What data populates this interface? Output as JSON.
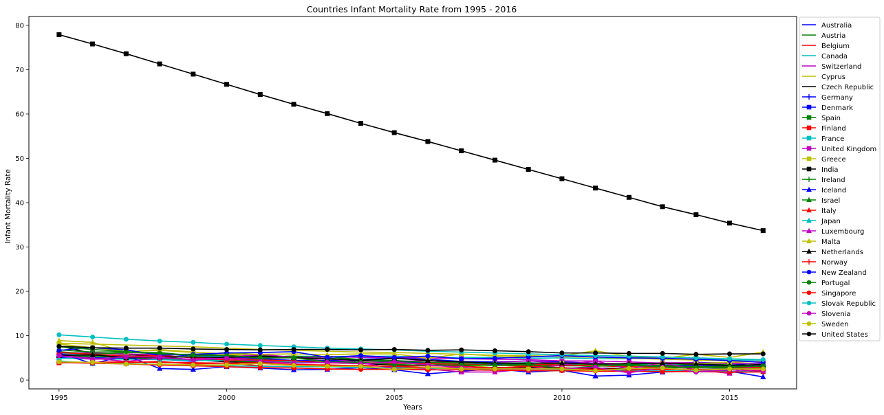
{
  "chart_data": {
    "type": "line",
    "title": "Countries Infant Mortality Rate from 1995 - 2016",
    "xlabel": "Years",
    "ylabel": "Infant Mortality Rate",
    "xlim": [
      1994.1,
      2017.0
    ],
    "ylim": [
      -2.0,
      82.0
    ],
    "xticks": [
      1995,
      2000,
      2005,
      2010,
      2015
    ],
    "yticks": [
      0,
      10,
      20,
      30,
      40,
      50,
      60,
      70,
      80
    ],
    "grid": false,
    "legend_position": "outside-right",
    "x": [
      1995,
      1996,
      1997,
      1998,
      1999,
      2000,
      2001,
      2002,
      2003,
      2004,
      2005,
      2006,
      2007,
      2008,
      2009,
      2010,
      2011,
      2012,
      2013,
      2014,
      2015,
      2016
    ],
    "series": [
      {
        "name": "Australia",
        "color": "#0000ff",
        "marker": "none",
        "values": [
          5.7,
          5.6,
          5.3,
          5.0,
          5.7,
          5.2,
          5.3,
          5.0,
          4.8,
          4.7,
          4.9,
          4.7,
          4.2,
          4.1,
          4.3,
          4.1,
          3.8,
          3.3,
          3.6,
          3.4,
          3.2,
          3.1
        ]
      },
      {
        "name": "Austria",
        "color": "#008000",
        "marker": "none",
        "values": [
          5.4,
          5.1,
          4.7,
          4.9,
          4.4,
          4.8,
          4.8,
          4.1,
          4.5,
          4.5,
          4.2,
          3.6,
          3.7,
          3.7,
          3.8,
          3.9,
          3.6,
          3.2,
          3.1,
          3.0,
          3.1,
          3.1
        ]
      },
      {
        "name": "Belgium",
        "color": "#ff0000",
        "marker": "none",
        "values": [
          6.0,
          5.6,
          5.6,
          5.6,
          5.0,
          4.8,
          4.5,
          4.4,
          4.1,
          4.3,
          3.7,
          4.0,
          4.0,
          3.7,
          3.4,
          3.6,
          3.3,
          3.8,
          3.5,
          3.4,
          3.3,
          3.2
        ]
      },
      {
        "name": "Canada",
        "color": "#00bfbf",
        "marker": "none",
        "values": [
          6.1,
          5.6,
          5.5,
          5.3,
          5.3,
          5.3,
          5.2,
          5.4,
          5.3,
          5.3,
          5.4,
          5.0,
          5.1,
          5.1,
          4.9,
          5.0,
          4.8,
          4.8,
          4.8,
          4.7,
          4.5,
          4.5
        ]
      },
      {
        "name": "Switzerland",
        "color": "#bf00bf",
        "marker": "none",
        "values": [
          5.0,
          4.7,
          4.8,
          4.8,
          4.6,
          4.9,
          5.0,
          5.0,
          4.3,
          4.2,
          4.2,
          4.4,
          3.9,
          4.0,
          4.3,
          3.8,
          3.8,
          3.6,
          3.9,
          3.9,
          3.9,
          3.6
        ]
      },
      {
        "name": "Cyprus",
        "color": "#bfbf00",
        "marker": "none",
        "values": [
          8.3,
          8.1,
          7.9,
          7.7,
          7.5,
          7.2,
          6.9,
          6.7,
          6.5,
          6.3,
          6.2,
          6.0,
          5.8,
          5.6,
          5.5,
          5.3,
          5.1,
          4.9,
          4.7,
          4.5,
          4.3,
          4.1
        ]
      },
      {
        "name": "Czech Republic",
        "color": "#000000",
        "marker": "none",
        "values": [
          7.7,
          6.0,
          5.9,
          5.2,
          4.6,
          4.1,
          4.0,
          4.1,
          3.9,
          3.7,
          3.4,
          3.3,
          3.1,
          2.8,
          2.9,
          2.7,
          2.7,
          2.6,
          2.5,
          2.4,
          2.5,
          2.8
        ]
      },
      {
        "name": "Germany",
        "color": "#0000ff",
        "marker": "plus",
        "values": [
          5.3,
          5.0,
          4.9,
          4.7,
          4.5,
          4.4,
          4.3,
          4.2,
          4.2,
          4.1,
          3.9,
          3.8,
          3.9,
          3.5,
          3.5,
          3.4,
          3.6,
          3.3,
          3.3,
          3.2,
          3.3,
          3.4
        ]
      },
      {
        "name": "Denmark",
        "color": "#0000ff",
        "marker": "square",
        "values": [
          5.1,
          5.6,
          5.2,
          4.7,
          4.2,
          5.3,
          4.9,
          4.4,
          4.4,
          4.4,
          4.4,
          3.8,
          4.0,
          4.0,
          3.1,
          3.4,
          3.5,
          3.4,
          3.5,
          4.0,
          3.7,
          3.1
        ]
      },
      {
        "name": "Spain",
        "color": "#008000",
        "marker": "square",
        "values": [
          5.5,
          5.4,
          5.0,
          4.9,
          4.5,
          4.4,
          4.1,
          4.1,
          3.9,
          4.0,
          3.8,
          3.7,
          3.5,
          3.3,
          3.2,
          3.2,
          3.2,
          3.1,
          2.7,
          2.9,
          2.7,
          2.7
        ]
      },
      {
        "name": "Finland",
        "color": "#ff0000",
        "marker": "square",
        "values": [
          3.9,
          4.0,
          3.9,
          4.2,
          3.6,
          3.8,
          3.2,
          3.0,
          3.1,
          3.3,
          3.0,
          2.8,
          2.7,
          2.6,
          2.6,
          2.3,
          2.4,
          2.4,
          1.8,
          2.2,
          1.7,
          1.9
        ]
      },
      {
        "name": "France",
        "color": "#00bfbf",
        "marker": "square",
        "values": [
          4.9,
          4.8,
          4.7,
          4.6,
          4.4,
          4.4,
          4.5,
          4.1,
          4.0,
          3.9,
          3.6,
          3.8,
          3.8,
          3.8,
          3.9,
          3.6,
          3.5,
          3.5,
          3.6,
          3.5,
          3.7,
          3.7
        ]
      },
      {
        "name": "United Kingdom",
        "color": "#bf00bf",
        "marker": "square",
        "values": [
          6.2,
          6.1,
          5.9,
          5.7,
          5.8,
          5.6,
          5.5,
          5.2,
          5.3,
          5.1,
          5.1,
          5.0,
          4.8,
          4.7,
          4.6,
          4.3,
          4.3,
          4.1,
          3.8,
          3.9,
          3.7,
          3.8
        ]
      },
      {
        "name": "Greece",
        "color": "#bfbf00",
        "marker": "square",
        "values": [
          8.1,
          7.3,
          6.4,
          6.7,
          6.2,
          5.9,
          5.1,
          5.1,
          4.0,
          4.1,
          3.8,
          3.7,
          3.5,
          2.7,
          3.1,
          3.8,
          3.4,
          2.9,
          3.7,
          3.7,
          4.0,
          4.2
        ]
      },
      {
        "name": "India",
        "color": "#000000",
        "marker": "square",
        "values": [
          77.9,
          75.8,
          73.6,
          71.3,
          69.0,
          66.7,
          64.4,
          62.2,
          60.1,
          57.9,
          55.8,
          53.8,
          51.7,
          49.6,
          47.5,
          45.4,
          43.3,
          41.2,
          39.1,
          37.3,
          35.4,
          33.7
        ]
      },
      {
        "name": "Ireland",
        "color": "#008000",
        "marker": "plus",
        "values": [
          6.4,
          5.8,
          6.2,
          6.2,
          5.5,
          6.2,
          5.7,
          5.1,
          5.3,
          4.6,
          4.0,
          3.7,
          3.1,
          3.8,
          3.2,
          3.8,
          3.5,
          3.5,
          3.2,
          3.6,
          3.4,
          3.0
        ]
      },
      {
        "name": "Iceland",
        "color": "#0000ff",
        "marker": "triangle",
        "values": [
          6.1,
          3.7,
          5.5,
          2.6,
          2.4,
          3.0,
          2.7,
          2.3,
          2.4,
          2.8,
          2.3,
          1.4,
          2.0,
          2.5,
          1.8,
          2.2,
          0.9,
          1.1,
          1.8,
          2.1,
          2.0,
          0.7
        ]
      },
      {
        "name": "Israel",
        "color": "#008000",
        "marker": "triangle",
        "values": [
          6.8,
          6.3,
          6.4,
          5.8,
          5.8,
          5.5,
          5.1,
          5.4,
          4.9,
          4.6,
          4.4,
          4.0,
          3.9,
          3.8,
          3.8,
          3.7,
          3.5,
          3.6,
          3.1,
          3.0,
          3.1,
          3.1
        ]
      },
      {
        "name": "Italy",
        "color": "#ff0000",
        "marker": "triangle",
        "values": [
          6.2,
          5.8,
          5.4,
          5.4,
          5.1,
          4.5,
          4.5,
          4.3,
          3.9,
          3.8,
          3.8,
          3.7,
          3.6,
          3.3,
          3.5,
          3.4,
          3.2,
          3.0,
          2.9,
          2.8,
          2.9,
          2.8
        ]
      },
      {
        "name": "Japan",
        "color": "#00bfbf",
        "marker": "triangle",
        "values": [
          4.3,
          3.8,
          3.7,
          3.6,
          3.4,
          3.2,
          3.1,
          3.0,
          3.0,
          2.8,
          2.8,
          2.6,
          2.6,
          2.6,
          2.4,
          2.3,
          2.3,
          2.2,
          2.1,
          2.1,
          1.9,
          2.0
        ]
      },
      {
        "name": "Luxembourg",
        "color": "#bf00bf",
        "marker": "triangle",
        "values": [
          5.5,
          4.9,
          4.2,
          5.0,
          4.7,
          5.1,
          5.8,
          5.1,
          4.9,
          3.9,
          2.6,
          2.5,
          1.8,
          1.8,
          2.5,
          3.4,
          4.3,
          2.5,
          3.9,
          2.3,
          1.5,
          3.8
        ]
      },
      {
        "name": "Malta",
        "color": "#bfbf00",
        "marker": "triangle",
        "values": [
          8.9,
          8.5,
          6.3,
          6.9,
          6.3,
          5.9,
          5.8,
          5.9,
          5.7,
          5.9,
          5.9,
          4.9,
          5.9,
          5.4,
          5.3,
          5.5,
          6.6,
          5.3,
          4.9,
          5.8,
          5.1,
          6.3
        ]
      },
      {
        "name": "Netherlands",
        "color": "#000000",
        "marker": "triangle",
        "values": [
          5.5,
          5.7,
          5.0,
          5.2,
          5.2,
          5.1,
          5.4,
          5.0,
          4.8,
          4.4,
          4.9,
          4.4,
          4.1,
          3.8,
          3.8,
          3.8,
          3.6,
          3.7,
          3.8,
          3.6,
          3.3,
          3.5
        ]
      },
      {
        "name": "Norway",
        "color": "#ff0000",
        "marker": "plus",
        "values": [
          4.0,
          4.0,
          4.1,
          4.0,
          3.9,
          3.8,
          3.9,
          3.5,
          3.4,
          3.2,
          3.1,
          3.2,
          3.1,
          2.7,
          3.1,
          2.8,
          2.4,
          2.5,
          2.4,
          2.4,
          2.3,
          2.2
        ]
      },
      {
        "name": "New Zealand",
        "color": "#0000ff",
        "marker": "circle",
        "values": [
          6.7,
          7.3,
          6.8,
          5.6,
          5.8,
          6.1,
          6.2,
          6.4,
          5.1,
          5.5,
          5.1,
          5.4,
          4.8,
          4.9,
          5.2,
          5.5,
          5.2,
          5.0,
          4.9,
          4.7,
          4.4,
          4.0
        ]
      },
      {
        "name": "Portugal",
        "color": "#008000",
        "marker": "circle",
        "values": [
          7.5,
          6.9,
          6.4,
          6.0,
          5.6,
          5.5,
          5.0,
          5.0,
          4.1,
          4.0,
          3.5,
          3.3,
          3.4,
          3.3,
          3.6,
          2.5,
          3.1,
          3.4,
          2.9,
          2.8,
          2.9,
          3.2
        ]
      },
      {
        "name": "Singapore",
        "color": "#ff0000",
        "marker": "circle",
        "values": [
          4.0,
          3.8,
          3.6,
          3.4,
          3.2,
          3.0,
          2.8,
          2.7,
          2.5,
          2.4,
          2.4,
          2.3,
          2.3,
          2.2,
          2.1,
          2.1,
          2.0,
          2.0,
          1.9,
          1.9,
          1.8,
          1.8
        ]
      },
      {
        "name": "Slovak Republic",
        "color": "#00bfbf",
        "marker": "circle",
        "values": [
          10.2,
          9.7,
          9.2,
          8.8,
          8.5,
          8.1,
          7.8,
          7.5,
          7.2,
          7.0,
          6.8,
          6.5,
          6.3,
          6.1,
          5.9,
          5.7,
          5.5,
          5.4,
          5.2,
          5.0,
          4.8,
          4.6
        ]
      },
      {
        "name": "Slovenia",
        "color": "#bf00bf",
        "marker": "circle",
        "values": [
          5.5,
          4.7,
          5.2,
          5.2,
          4.5,
          4.9,
          4.2,
          3.8,
          4.0,
          3.7,
          4.1,
          3.4,
          2.8,
          2.4,
          2.4,
          2.5,
          2.9,
          1.6,
          2.9,
          1.8,
          2.3,
          2.0
        ]
      },
      {
        "name": "Sweden",
        "color": "#bfbf00",
        "marker": "circle",
        "values": [
          4.1,
          4.0,
          3.6,
          3.6,
          3.4,
          3.4,
          3.7,
          3.3,
          3.1,
          3.1,
          2.4,
          2.8,
          2.5,
          2.5,
          2.5,
          2.5,
          2.1,
          2.6,
          2.7,
          2.2,
          2.5,
          2.5
        ]
      },
      {
        "name": "United States",
        "color": "#000000",
        "marker": "circle",
        "values": [
          7.6,
          7.3,
          7.2,
          7.2,
          7.0,
          6.9,
          6.8,
          6.9,
          6.9,
          6.8,
          6.9,
          6.7,
          6.8,
          6.6,
          6.4,
          6.1,
          6.1,
          6.0,
          6.0,
          5.8,
          5.9,
          5.9
        ]
      }
    ]
  }
}
